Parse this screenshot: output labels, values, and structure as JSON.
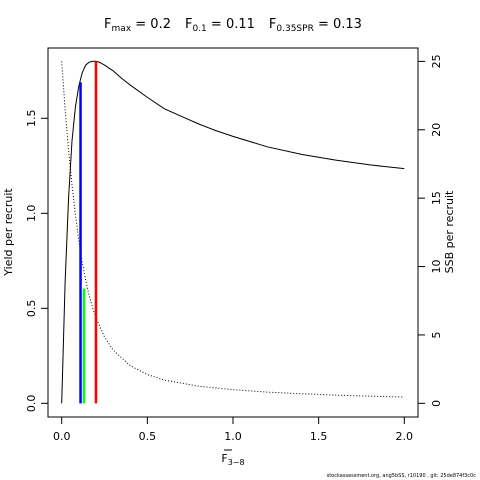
{
  "chart_data": {
    "type": "line",
    "title_parts": [
      {
        "main": "F",
        "sub": "max",
        "value": " = 0.2"
      },
      {
        "main": "F",
        "sub": "0.1",
        "value": " = 0.11"
      },
      {
        "main": "F",
        "sub": "0.35SPR",
        "value": " = 0.13"
      }
    ],
    "xlabel": {
      "main": "F",
      "sub": "3−8",
      "overline": true
    },
    "ylabel": "Yield per recruit",
    "y2label": "SSB per recruit",
    "xlim": [
      -0.08,
      2.08
    ],
    "ylim": [
      -0.072,
      1.87
    ],
    "y2lim": [
      -1.0,
      25.98
    ],
    "x_ticks": [
      0,
      0.5,
      1,
      1.5,
      2
    ],
    "x_tick_labels": [
      "0.0",
      "0.5",
      "1.0",
      "1.5",
      "2.0"
    ],
    "y_ticks": [
      0,
      0.5,
      1,
      1.5
    ],
    "y_tick_labels": [
      "0.0",
      "0.5",
      "1.0",
      "1.5"
    ],
    "y2_ticks": [
      0,
      5,
      10,
      15,
      20,
      25
    ],
    "y2_tick_labels": [
      "0",
      "5",
      "10",
      "15",
      "20",
      "25"
    ],
    "series": [
      {
        "axis": "left",
        "style": "solid",
        "color": "#000000",
        "x": [
          0,
          0.02,
          0.04,
          0.06,
          0.08,
          0.1,
          0.12,
          0.14,
          0.16,
          0.18,
          0.2,
          0.22,
          0.25,
          0.3,
          0.35,
          0.4,
          0.5,
          0.6,
          0.7,
          0.8,
          0.9,
          1.0,
          1.2,
          1.4,
          1.6,
          1.8,
          2.0
        ],
        "values": [
          0.0,
          0.64,
          1.08,
          1.38,
          1.56,
          1.67,
          1.74,
          1.78,
          1.795,
          1.8,
          1.8,
          1.795,
          1.78,
          1.75,
          1.71,
          1.675,
          1.61,
          1.55,
          1.51,
          1.47,
          1.435,
          1.405,
          1.35,
          1.31,
          1.28,
          1.255,
          1.235
        ]
      },
      {
        "axis": "right",
        "style": "dotted",
        "color": "#000000",
        "x": [
          0,
          0.02,
          0.04,
          0.06,
          0.08,
          0.1,
          0.12,
          0.14,
          0.16,
          0.18,
          0.2,
          0.25,
          0.3,
          0.4,
          0.5,
          0.6,
          0.8,
          1.0,
          1.2,
          1.4,
          1.6,
          1.8,
          2.0
        ],
        "values": [
          25.0,
          21.5,
          18.5,
          16.0,
          13.8,
          11.9,
          10.3,
          9.0,
          7.9,
          7.0,
          6.25,
          4.85,
          3.9,
          2.75,
          2.1,
          1.7,
          1.25,
          1.0,
          0.82,
          0.7,
          0.6,
          0.52,
          0.46
        ]
      }
    ],
    "reference_lines": [
      {
        "x": 0.11,
        "y_top": 1.69,
        "axis": "left",
        "color": "#0000ff"
      },
      {
        "x": 0.13,
        "y_top": 8.4,
        "axis": "right",
        "color": "#00ff00"
      },
      {
        "x": 0.2,
        "y_top": 1.8,
        "axis": "left",
        "color": "#ff0000"
      }
    ],
    "grid": false,
    "legend": "none"
  },
  "footer": "stockassessment.org, ang5bSS, r10190 , git: 25de874f3c0c"
}
